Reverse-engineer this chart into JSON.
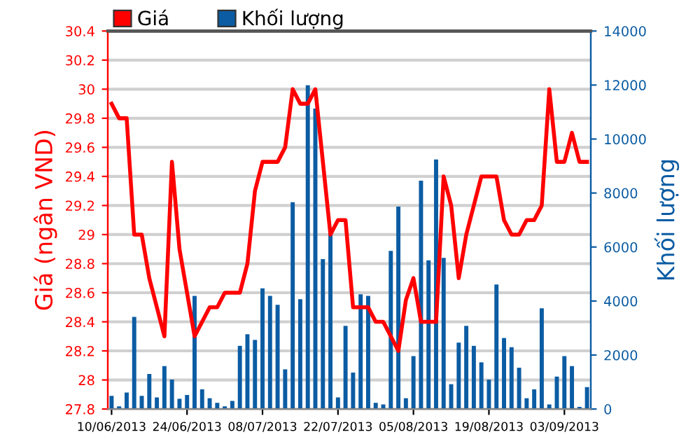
{
  "chart_data": {
    "type": "bar",
    "ylabel": "Giá (ngân VND)",
    "y2label": "Khối lượng",
    "categories": [
      "10/06/2013",
      null,
      null,
      null,
      null,
      null,
      null,
      null,
      null,
      null,
      "24/06/2013",
      null,
      null,
      null,
      null,
      null,
      null,
      null,
      null,
      null,
      "08/07/2013",
      null,
      null,
      null,
      null,
      null,
      null,
      null,
      null,
      null,
      "22/07/2013",
      null,
      null,
      null,
      null,
      null,
      null,
      null,
      null,
      null,
      "05/08/2013",
      null,
      null,
      null,
      null,
      null,
      null,
      null,
      null,
      null,
      "19/08/2013",
      null,
      null,
      null,
      null,
      null,
      null,
      null,
      null,
      null,
      "03/09/2013",
      null,
      null,
      null
    ],
    "series": [
      {
        "name": "Giá",
        "type": "line",
        "axis": "y",
        "color": "#ff0000",
        "values": [
          29.9,
          29.8,
          29.8,
          29.0,
          29.0,
          28.7,
          28.5,
          28.3,
          29.5,
          28.9,
          28.6,
          28.3,
          28.4,
          28.5,
          28.5,
          28.6,
          28.6,
          28.6,
          28.8,
          29.3,
          29.5,
          29.5,
          29.5,
          29.6,
          30.0,
          29.9,
          29.9,
          30.0,
          29.5,
          29.0,
          29.1,
          29.1,
          28.5,
          28.5,
          28.5,
          28.4,
          28.4,
          28.3,
          28.2,
          28.55,
          28.7,
          28.4,
          28.4,
          28.4,
          29.4,
          29.2,
          28.7,
          29.0,
          29.2,
          29.4,
          29.4,
          29.4,
          29.1,
          29.0,
          29.0,
          29.1,
          29.1,
          29.2,
          30.0,
          29.5,
          29.5,
          29.7,
          29.5,
          29.5
        ]
      },
      {
        "name": "Khối lượng",
        "axis": "y2",
        "color": "#0b5ca3",
        "values": [
          490,
          100,
          610,
          3410,
          490,
          1300,
          430,
          1590,
          1090,
          380,
          520,
          4190,
          730,
          400,
          230,
          100,
          300,
          2340,
          2770,
          2560,
          4470,
          4190,
          3860,
          1470,
          7660,
          4070,
          11990,
          11130,
          5550,
          6550,
          430,
          3080,
          1350,
          4250,
          4190,
          230,
          170,
          5860,
          7500,
          400,
          1960,
          8460,
          5510,
          9240,
          5600,
          920,
          2460,
          3080,
          2340,
          1730,
          1090,
          4610,
          2630,
          2290,
          1530,
          400,
          730,
          3730,
          170,
          1200,
          1960,
          1590,
          80,
          810
        ]
      }
    ],
    "ylim": [
      27.8,
      30.4
    ],
    "yticks": [
      27.8,
      28,
      28.2,
      28.4,
      28.6,
      28.8,
      29,
      29.2,
      29.4,
      29.6,
      29.8,
      30,
      30.2,
      30.4
    ],
    "y2lim": [
      0,
      14000
    ],
    "y2ticks": [
      0,
      2000,
      4000,
      6000,
      8000,
      10000,
      12000,
      14000
    ],
    "grid": "y",
    "legend": "top left"
  }
}
